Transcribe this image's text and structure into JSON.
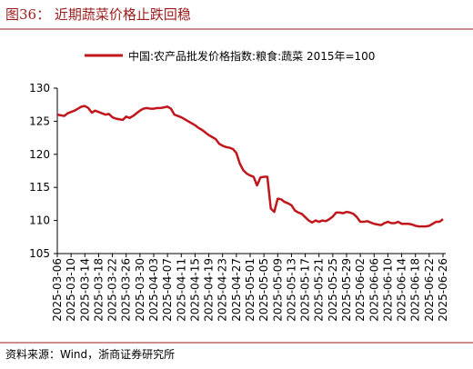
{
  "chart_data": {
    "type": "line",
    "title": "图36：  近期蔬菜价格止跌回稳",
    "source": "资料来源：Wind，浙商证券研究所",
    "categories": [
      "2025-03-06",
      null,
      null,
      null,
      "2025-03-10",
      null,
      null,
      null,
      "2025-03-14",
      null,
      null,
      null,
      "2025-03-18",
      null,
      null,
      null,
      "2025-03-22",
      null,
      null,
      null,
      "2025-03-26",
      null,
      null,
      null,
      "2025-03-30",
      null,
      null,
      null,
      "2025-04-03",
      null,
      null,
      null,
      "2025-04-07",
      null,
      null,
      null,
      "2025-04-11",
      null,
      null,
      null,
      "2025-04-15",
      null,
      null,
      null,
      "2025-04-19",
      null,
      null,
      null,
      "2025-04-23",
      null,
      null,
      null,
      "2025-04-27",
      null,
      null,
      null,
      "2025-05-01",
      null,
      null,
      null,
      "2025-05-05",
      null,
      null,
      null,
      "2025-05-09",
      null,
      null,
      null,
      "2025-05-13",
      null,
      null,
      null,
      "2025-05-17",
      null,
      null,
      null,
      "2025-05-21",
      null,
      null,
      null,
      "2025-05-25",
      null,
      null,
      null,
      "2025-05-29",
      null,
      null,
      null,
      "2025-06-02",
      null,
      null,
      null,
      "2025-06-06",
      null,
      null,
      null,
      "2025-06-10",
      null,
      null,
      null,
      "2025-06-14",
      null,
      null,
      null,
      "2025-06-18",
      null,
      null,
      null,
      "2025-06-22",
      null,
      null,
      null,
      "2025-06-26"
    ],
    "series": [
      {
        "name": "中国:农产品批发价格指数:粮食:蔬菜 2015年=100",
        "color": "#c0161c",
        "values": [
          126.0,
          125.9,
          125.8,
          126.2,
          126.4,
          126.6,
          126.9,
          127.2,
          127.3,
          127.0,
          126.3,
          126.6,
          126.4,
          126.2,
          126.0,
          126.1,
          125.6,
          125.4,
          125.3,
          125.2,
          125.7,
          125.5,
          125.8,
          126.2,
          126.6,
          126.9,
          127.0,
          126.9,
          126.9,
          127.0,
          127.0,
          127.1,
          127.2,
          126.9,
          126.0,
          125.8,
          125.6,
          125.3,
          125.0,
          124.7,
          124.4,
          124.0,
          123.7,
          123.3,
          122.9,
          122.6,
          122.3,
          121.6,
          121.3,
          121.1,
          121.0,
          120.8,
          120.2,
          118.6,
          117.6,
          117.1,
          116.8,
          116.6,
          115.3,
          116.5,
          116.6,
          116.6,
          111.8,
          111.3,
          113.3,
          113.2,
          112.8,
          112.6,
          112.3,
          111.5,
          111.2,
          111.0,
          110.5,
          110.0,
          109.7,
          110.0,
          109.8,
          110.0,
          109.9,
          110.2,
          110.6,
          111.2,
          111.2,
          111.1,
          111.3,
          111.2,
          111.0,
          110.5,
          109.8,
          109.8,
          109.9,
          109.7,
          109.5,
          109.4,
          109.3,
          109.6,
          109.8,
          109.6,
          109.6,
          109.8,
          109.5,
          109.5,
          109.5,
          109.4,
          109.2,
          109.1,
          109.1,
          109.1,
          109.2,
          109.5,
          109.8,
          109.8,
          110.2
        ]
      }
    ],
    "ylim": [
      105,
      130
    ],
    "yticks": [
      105,
      110,
      115,
      120,
      125,
      130
    ],
    "grid": false
  }
}
